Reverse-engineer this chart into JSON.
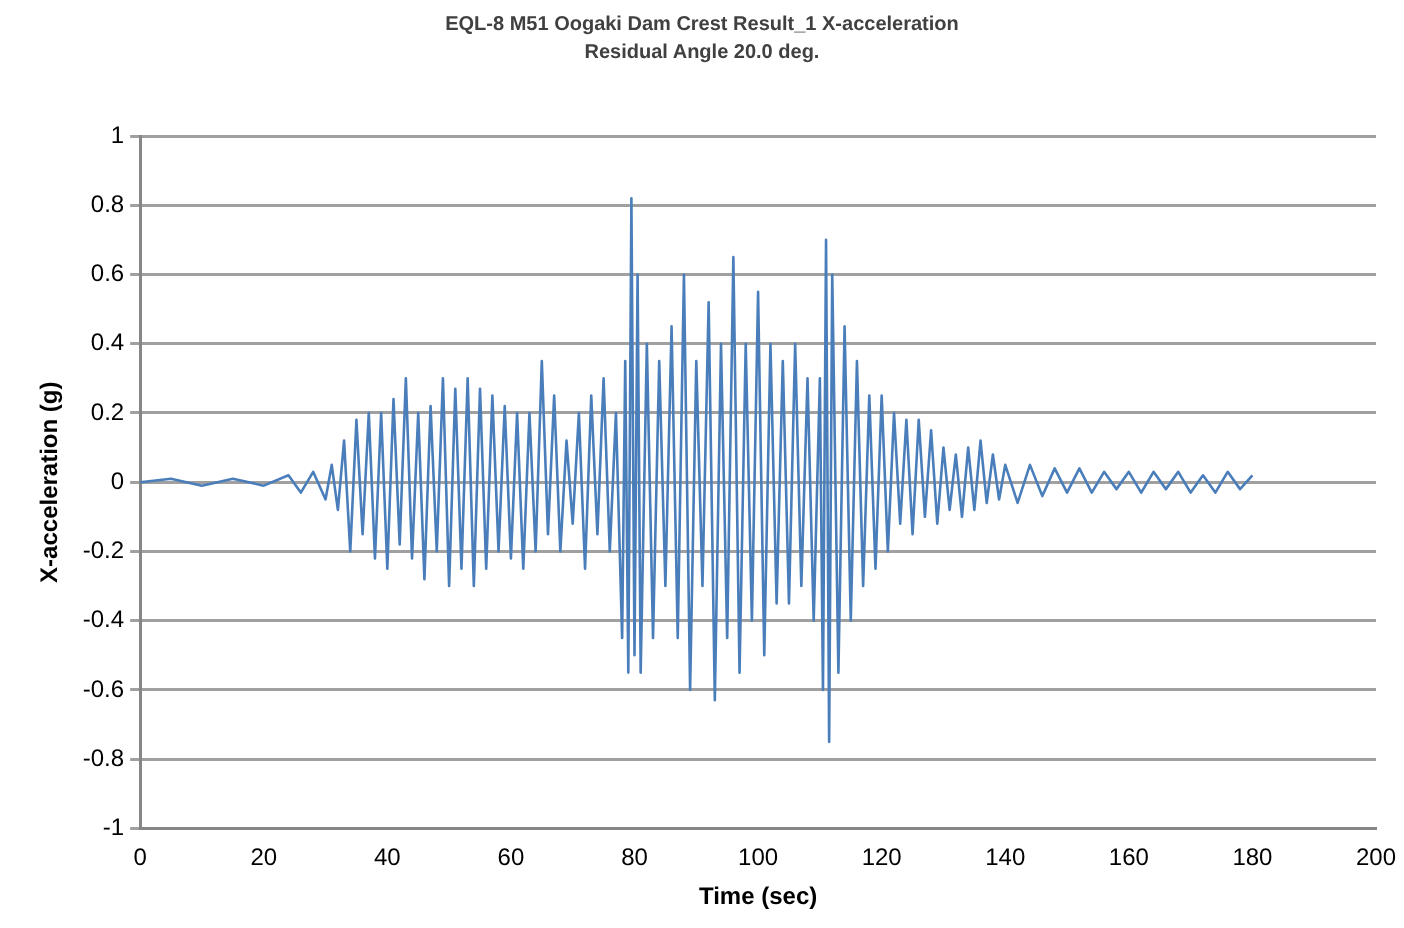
{
  "chart_data": {
    "type": "line",
    "title": "EQL-8 M51 Oogaki Dam Crest Result_1 X-acceleration",
    "subtitle": "Residual Angle 20.0 deg.",
    "xlabel": "Time (sec)",
    "ylabel": "X-acceleration (g)",
    "xlim": [
      0,
      200
    ],
    "xticks": [
      0,
      20,
      40,
      60,
      80,
      100,
      120,
      140,
      160,
      180,
      200
    ],
    "ylim": [
      -1,
      1
    ],
    "yticks": [
      -1,
      -0.8,
      -0.6,
      -0.4,
      -0.2,
      0,
      0.2,
      0.4,
      0.6,
      0.8,
      1
    ],
    "grid": "y",
    "legend": false,
    "marker": "none",
    "line_style": "solid",
    "x": [
      0,
      5,
      10,
      15,
      20,
      24,
      26,
      28,
      30,
      31,
      32,
      33,
      34,
      35,
      36,
      37,
      38,
      39,
      40,
      41,
      42,
      43,
      44,
      45,
      46,
      47,
      48,
      49,
      50,
      51,
      52,
      53,
      54,
      55,
      56,
      57,
      58,
      59,
      60,
      61,
      62,
      63,
      64,
      65,
      66,
      67,
      68,
      69,
      70,
      71,
      72,
      73,
      74,
      75,
      76,
      77,
      78,
      78.5,
      79,
      79.5,
      80,
      80.5,
      81,
      82,
      83,
      84,
      85,
      86,
      87,
      88,
      89,
      90,
      91,
      92,
      93,
      94,
      95,
      96,
      97,
      98,
      99,
      100,
      101,
      102,
      103,
      104,
      105,
      106,
      107,
      108,
      109,
      110,
      110.5,
      111,
      111.5,
      112,
      113,
      114,
      115,
      116,
      117,
      118,
      119,
      120,
      121,
      122,
      123,
      124,
      125,
      126,
      127,
      128,
      129,
      130,
      131,
      132,
      133,
      134,
      135,
      136,
      137,
      138,
      139,
      140,
      142,
      144,
      146,
      148,
      150,
      152,
      154,
      156,
      158,
      160,
      162,
      164,
      166,
      168,
      170,
      172,
      174,
      176,
      178,
      180
    ],
    "series": [
      {
        "color": "#4a7ebb",
        "values": [
          0,
          0.01,
          -0.01,
          0.01,
          -0.01,
          0.02,
          -0.03,
          0.03,
          -0.05,
          0.05,
          -0.08,
          0.12,
          -0.2,
          0.18,
          -0.15,
          0.2,
          -0.22,
          0.2,
          -0.25,
          0.24,
          -0.18,
          0.3,
          -0.22,
          0.2,
          -0.28,
          0.22,
          -0.2,
          0.3,
          -0.3,
          0.27,
          -0.25,
          0.3,
          -0.3,
          0.27,
          -0.25,
          0.25,
          -0.2,
          0.22,
          -0.22,
          0.2,
          -0.25,
          0.2,
          -0.2,
          0.35,
          -0.15,
          0.25,
          -0.2,
          0.12,
          -0.12,
          0.2,
          -0.25,
          0.25,
          -0.15,
          0.3,
          -0.2,
          0.2,
          -0.45,
          0.35,
          -0.55,
          0.82,
          -0.5,
          0.6,
          -0.55,
          0.4,
          -0.45,
          0.35,
          -0.3,
          0.45,
          -0.45,
          0.6,
          -0.6,
          0.35,
          -0.3,
          0.52,
          -0.63,
          0.4,
          -0.45,
          0.65,
          -0.55,
          0.4,
          -0.4,
          0.55,
          -0.5,
          0.4,
          -0.35,
          0.35,
          -0.35,
          0.4,
          -0.3,
          0.3,
          -0.4,
          0.3,
          -0.6,
          0.7,
          -0.75,
          0.6,
          -0.55,
          0.45,
          -0.4,
          0.35,
          -0.3,
          0.25,
          -0.25,
          0.25,
          -0.2,
          0.2,
          -0.12,
          0.18,
          -0.15,
          0.18,
          -0.1,
          0.15,
          -0.12,
          0.1,
          -0.08,
          0.08,
          -0.1,
          0.1,
          -0.08,
          0.12,
          -0.06,
          0.08,
          -0.05,
          0.05,
          -0.06,
          0.05,
          -0.04,
          0.04,
          -0.03,
          0.04,
          -0.03,
          0.03,
          -0.02,
          0.03,
          -0.03,
          0.03,
          -0.02,
          0.03,
          -0.03,
          0.02,
          -0.03,
          0.03,
          -0.02,
          0.02
        ]
      }
    ]
  }
}
